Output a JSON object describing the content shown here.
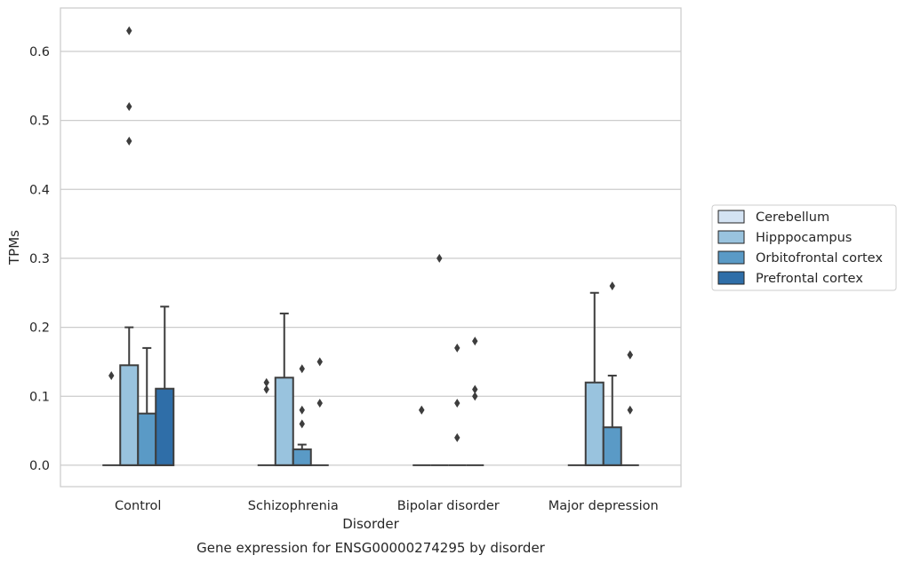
{
  "chart_data": {
    "type": "box",
    "title": "Gene expression for ENSG00000274295 by disorder",
    "xlabel": "Disorder",
    "ylabel": "TPMs",
    "ylim": [
      -0.031,
      0.663
    ],
    "yticks": [
      0.0,
      0.1,
      0.2,
      0.3,
      0.4,
      0.5,
      0.6
    ],
    "ytick_labels": [
      "0.0",
      "0.1",
      "0.2",
      "0.3",
      "0.4",
      "0.5",
      "0.6"
    ],
    "grid": true,
    "legend_position": "right",
    "categories": [
      "Control",
      "Schizophrenia",
      "Bipolar disorder",
      "Major depression"
    ],
    "series": [
      {
        "name": "Cerebellum",
        "color": "#d4e3f3",
        "boxes": [
          {
            "q1": 0,
            "median": 0,
            "q3": 0,
            "whisker_low": 0,
            "whisker_high": 0,
            "outliers": [
              0.13
            ]
          },
          {
            "q1": 0,
            "median": 0,
            "q3": 0,
            "whisker_low": 0,
            "whisker_high": 0,
            "outliers": [
              0.11,
              0.12
            ]
          },
          {
            "q1": 0,
            "median": 0,
            "q3": 0,
            "whisker_low": 0,
            "whisker_high": 0,
            "outliers": [
              0.08,
              0.08
            ]
          },
          {
            "q1": 0,
            "median": 0,
            "q3": 0,
            "whisker_low": 0,
            "whisker_high": 0,
            "outliers": []
          }
        ]
      },
      {
        "name": "Hipppocampus",
        "color": "#99c3de",
        "boxes": [
          {
            "q1": 0,
            "median": 0,
            "q3": 0.145,
            "whisker_low": 0,
            "whisker_high": 0.2,
            "outliers": [
              0.47,
              0.52,
              0.63
            ]
          },
          {
            "q1": 0,
            "median": 0,
            "q3": 0.127,
            "whisker_low": 0,
            "whisker_high": 0.22,
            "outliers": []
          },
          {
            "q1": 0,
            "median": 0,
            "q3": 0,
            "whisker_low": 0,
            "whisker_high": 0,
            "outliers": [
              0.3
            ]
          },
          {
            "q1": 0,
            "median": 0,
            "q3": 0.12,
            "whisker_low": 0,
            "whisker_high": 0.25,
            "outliers": []
          }
        ]
      },
      {
        "name": "Orbitofrontal cortex",
        "color": "#5a9ac6",
        "boxes": [
          {
            "q1": 0,
            "median": 0,
            "q3": 0.075,
            "whisker_low": 0,
            "whisker_high": 0.17,
            "outliers": []
          },
          {
            "q1": 0,
            "median": 0,
            "q3": 0.023,
            "whisker_low": 0,
            "whisker_high": 0.03,
            "outliers": [
              0.06,
              0.08,
              0.14
            ]
          },
          {
            "q1": 0,
            "median": 0,
            "q3": 0,
            "whisker_low": 0,
            "whisker_high": 0,
            "outliers": [
              0.04,
              0.09,
              0.17
            ]
          },
          {
            "q1": 0,
            "median": 0,
            "q3": 0.055,
            "whisker_low": 0,
            "whisker_high": 0.13,
            "outliers": [
              0.26
            ]
          }
        ]
      },
      {
        "name": "Prefrontal cortex",
        "color": "#2f6ea8",
        "boxes": [
          {
            "q1": 0,
            "median": 0,
            "q3": 0.111,
            "whisker_low": 0,
            "whisker_high": 0.23,
            "outliers": []
          },
          {
            "q1": 0,
            "median": 0,
            "q3": 0,
            "whisker_low": 0,
            "whisker_high": 0,
            "outliers": [
              0.09,
              0.15
            ]
          },
          {
            "q1": 0,
            "median": 0,
            "q3": 0,
            "whisker_low": 0,
            "whisker_high": 0,
            "outliers": [
              0.1,
              0.11,
              0.18
            ]
          },
          {
            "q1": 0,
            "median": 0,
            "q3": 0,
            "whisker_low": 0,
            "whisker_high": 0,
            "outliers": [
              0.08,
              0.16,
              0.16
            ]
          }
        ]
      }
    ]
  }
}
